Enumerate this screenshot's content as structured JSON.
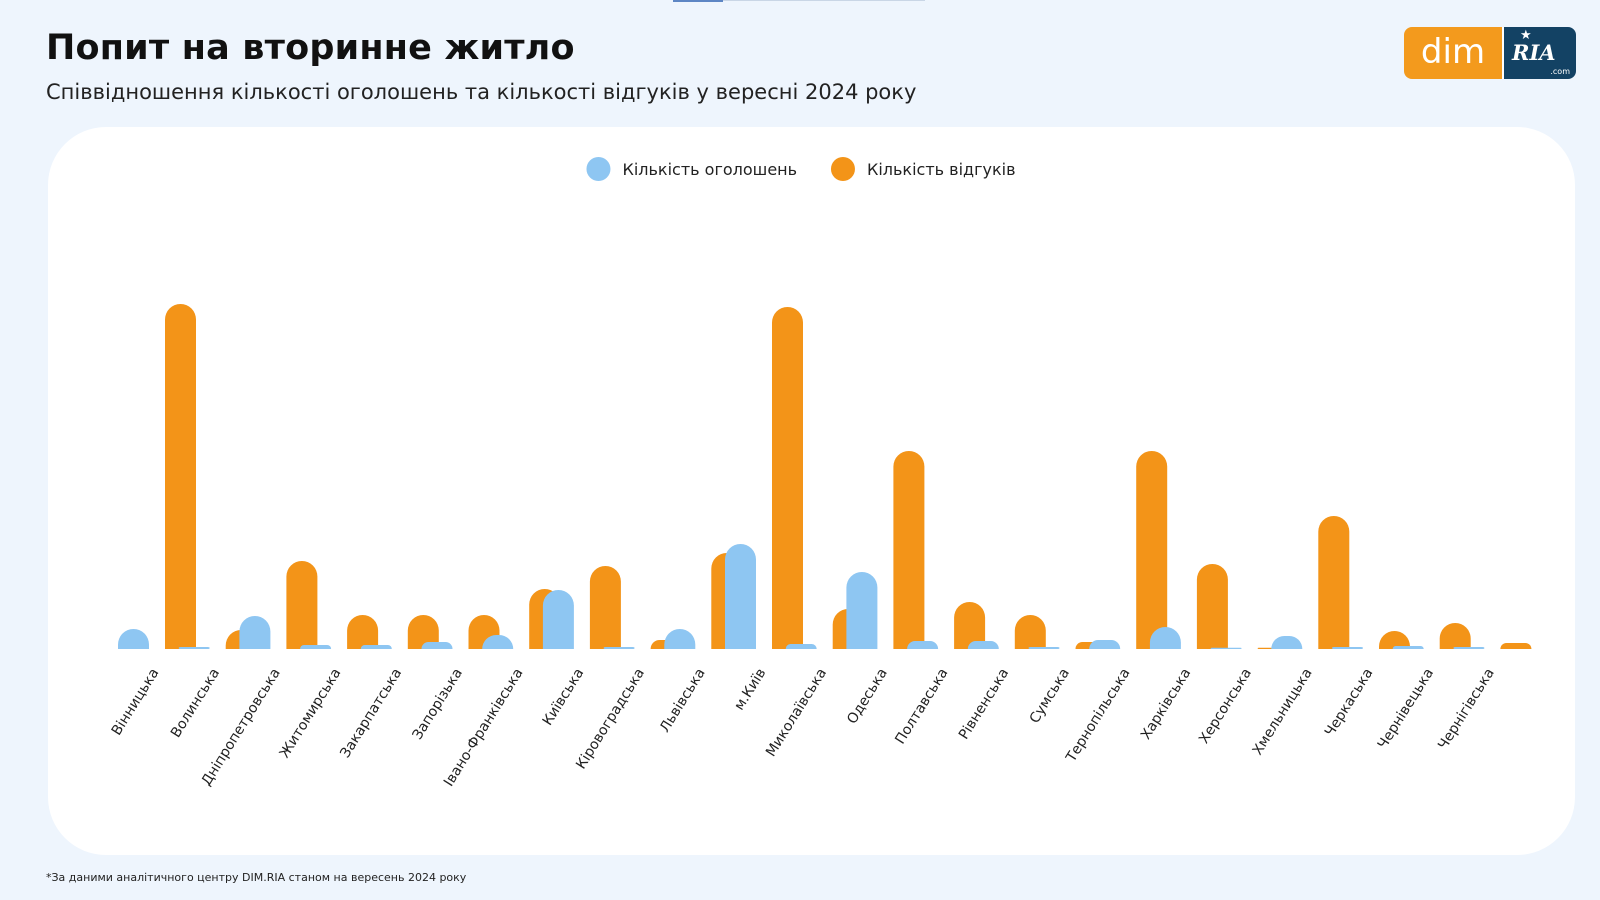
{
  "header": {
    "title": "Попит на вторинне житло",
    "subtitle": "Співвідношення кількості оголошень та кількості відгуків у вересні 2024 року"
  },
  "logo": {
    "dim_text": "dim",
    "ria_text": "RIA",
    "ria_suffix": ".com",
    "star_icon": "star-icon",
    "colors": {
      "dim_bg": "#f39a1d",
      "ria_bg": "#134264"
    }
  },
  "footnote": "*За даними аналітичного центру DIM.RIA станом на вересень 2024 року",
  "chart_data": {
    "type": "bar",
    "grid": false,
    "legend_position": "top-center",
    "ylim": [
      0,
      345
    ],
    "categories": [
      "Вінницька",
      "Волинська",
      "Дніпропетровська",
      "Житомирська",
      "Закарпатська",
      "Запорізька",
      "Івано-Франківська",
      "Київська",
      "Кіровоградська",
      "Львівська",
      "м.Київ",
      "Миколаївська",
      "Одеська",
      "Полтавська",
      "Рівненська",
      "Сумська",
      "Тернопільська",
      "Харківська",
      "Херсонська",
      "Хмельницька",
      "Черкаська",
      "Чернівецька",
      "Чернігівська"
    ],
    "series": [
      {
        "name": "Кількість оголошень",
        "color": "#8ec6f2",
        "values": [
          20,
          2,
          33,
          4,
          4,
          7,
          14,
          59,
          2,
          20,
          105,
          5,
          77,
          8,
          8,
          2,
          9,
          22,
          1,
          13,
          2,
          3,
          2
        ]
      },
      {
        "name": "Кількість відгуків",
        "color": "#f39418",
        "values": [
          345,
          19,
          88,
          34,
          34,
          34,
          60,
          83,
          9,
          96,
          342,
          40,
          198,
          47,
          34,
          7,
          198,
          85,
          1,
          133,
          18,
          26,
          6
        ]
      }
    ]
  }
}
